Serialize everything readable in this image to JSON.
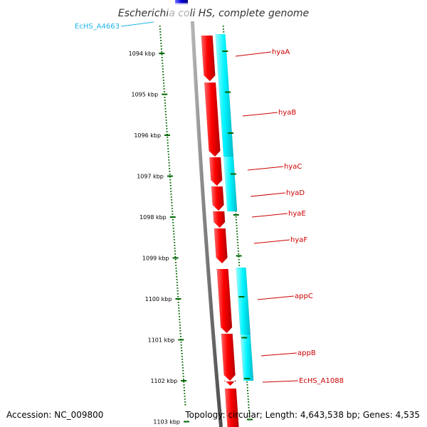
{
  "title": "Escherichia coli HS, complete genome",
  "footer": {
    "accession": "Accession: NC_009800",
    "topology": "Topology: circular; Length: 4,643,538 bp; Genes: 4,535"
  },
  "ruler": {
    "unit": "kbp",
    "ticks": [
      {
        "kbp": 1094,
        "label": "1094 kbp"
      },
      {
        "kbp": 1095,
        "label": "1095 kbp"
      },
      {
        "kbp": 1096,
        "label": "1096 kbp"
      },
      {
        "kbp": 1097,
        "label": "1097 kbp"
      },
      {
        "kbp": 1098,
        "label": "1098 kbp"
      },
      {
        "kbp": 1099,
        "label": "1099 kbp"
      },
      {
        "kbp": 1100,
        "label": "1100 kbp"
      },
      {
        "kbp": 1101,
        "label": "1101 kbp"
      },
      {
        "kbp": 1102,
        "label": "1102 kbp"
      },
      {
        "kbp": 1103,
        "label": "1103 kbp"
      }
    ]
  },
  "genes": [
    {
      "name": "EcHS_A4663",
      "color": "#1eb4e6",
      "side": "left"
    },
    {
      "name": "hyaA",
      "color": "#cc0000",
      "side": "right"
    },
    {
      "name": "hyaB",
      "color": "#cc0000",
      "side": "right"
    },
    {
      "name": "hyaC",
      "color": "#cc0000",
      "side": "right"
    },
    {
      "name": "hyaD",
      "color": "#cc0000",
      "side": "right"
    },
    {
      "name": "hyaE",
      "color": "#cc0000",
      "side": "right"
    },
    {
      "name": "hyaF",
      "color": "#cc0000",
      "side": "right"
    },
    {
      "name": "appC",
      "color": "#cc0000",
      "side": "right"
    },
    {
      "name": "appB",
      "color": "#cc0000",
      "side": "right"
    },
    {
      "name": "EcHS_A1088",
      "color": "#cc0000",
      "side": "right"
    }
  ],
  "colors": {
    "cds_feature": "#ff0000",
    "gene_feature": "#00ffff",
    "reverse_feature": "#0000cc",
    "backbone": "#808080",
    "ruler_ticks": "#006600",
    "label_red": "#cc0000",
    "label_cyan": "#1eb4e6"
  }
}
